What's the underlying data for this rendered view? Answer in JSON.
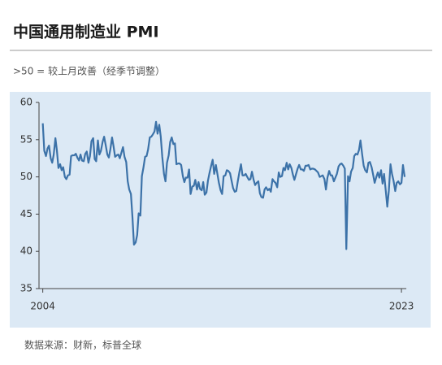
{
  "chart_data": {
    "type": "line",
    "title": "中国通用制造业 PMI",
    "subtitle": ">50 = 较上月改善（经季节调整）",
    "source": "数据来源：财新，标普全球",
    "color": "#3c72a8",
    "xlim": [
      2003.8,
      2023.9
    ],
    "xticks": [
      2004,
      2023
    ],
    "ylim": [
      35,
      60
    ],
    "yticks": [
      35,
      40,
      45,
      50,
      55,
      60
    ],
    "x": [
      2004.0,
      2004.08,
      2004.17,
      2004.25,
      2004.33,
      2004.42,
      2004.5,
      2004.58,
      2004.67,
      2004.75,
      2004.83,
      2004.92,
      2005.0,
      2005.08,
      2005.17,
      2005.25,
      2005.33,
      2005.42,
      2005.5,
      2005.58,
      2005.67,
      2005.75,
      2005.83,
      2005.92,
      2006.0,
      2006.08,
      2006.17,
      2006.25,
      2006.33,
      2006.42,
      2006.5,
      2006.58,
      2006.67,
      2006.75,
      2006.83,
      2006.92,
      2007.0,
      2007.08,
      2007.17,
      2007.25,
      2007.33,
      2007.42,
      2007.5,
      2007.58,
      2007.67,
      2007.75,
      2007.83,
      2007.92,
      2008.0,
      2008.08,
      2008.17,
      2008.25,
      2008.33,
      2008.42,
      2008.5,
      2008.58,
      2008.67,
      2008.75,
      2008.83,
      2008.92,
      2009.0,
      2009.08,
      2009.17,
      2009.25,
      2009.33,
      2009.42,
      2009.5,
      2009.58,
      2009.67,
      2009.75,
      2009.83,
      2009.92,
      2010.0,
      2010.08,
      2010.17,
      2010.25,
      2010.33,
      2010.42,
      2010.5,
      2010.58,
      2010.67,
      2010.75,
      2010.83,
      2010.92,
      2011.0,
      2011.08,
      2011.17,
      2011.25,
      2011.33,
      2011.42,
      2011.5,
      2011.58,
      2011.67,
      2011.75,
      2011.83,
      2011.92,
      2012.0,
      2012.08,
      2012.17,
      2012.25,
      2012.33,
      2012.42,
      2012.5,
      2012.58,
      2012.67,
      2012.75,
      2012.83,
      2012.92,
      2013.0,
      2013.08,
      2013.17,
      2013.25,
      2013.33,
      2013.42,
      2013.5,
      2013.58,
      2013.67,
      2013.75,
      2013.83,
      2013.92,
      2014.0,
      2014.08,
      2014.17,
      2014.25,
      2014.33,
      2014.42,
      2014.5,
      2014.58,
      2014.67,
      2014.75,
      2014.83,
      2014.92,
      2015.0,
      2015.08,
      2015.17,
      2015.25,
      2015.33,
      2015.42,
      2015.5,
      2015.58,
      2015.67,
      2015.75,
      2015.83,
      2015.92,
      2016.0,
      2016.08,
      2016.17,
      2016.25,
      2016.33,
      2016.42,
      2016.5,
      2016.58,
      2016.67,
      2016.75,
      2016.83,
      2016.92,
      2017.0,
      2017.08,
      2017.17,
      2017.25,
      2017.33,
      2017.42,
      2017.5,
      2017.58,
      2017.67,
      2017.75,
      2017.83,
      2017.92,
      2018.0,
      2018.08,
      2018.17,
      2018.25,
      2018.33,
      2018.42,
      2018.5,
      2018.58,
      2018.67,
      2018.75,
      2018.83,
      2018.92,
      2019.0,
      2019.08,
      2019.17,
      2019.25,
      2019.33,
      2019.42,
      2019.5,
      2019.58,
      2019.67,
      2019.75,
      2019.83,
      2019.92,
      2020.0,
      2020.08,
      2020.17,
      2020.25,
      2020.33,
      2020.42,
      2020.5,
      2020.58,
      2020.67,
      2020.75,
      2020.83,
      2020.92,
      2021.0,
      2021.08,
      2021.17,
      2021.25,
      2021.33,
      2021.42,
      2021.5,
      2021.58,
      2021.67,
      2021.75,
      2021.83,
      2021.92,
      2022.0,
      2022.08,
      2022.17,
      2022.25,
      2022.33,
      2022.42,
      2022.5,
      2022.58,
      2022.67,
      2022.75,
      2022.83,
      2022.92,
      2023.0,
      2023.08,
      2023.17
    ],
    "values": [
      57.2,
      53.5,
      52.8,
      53.8,
      54.2,
      52.5,
      51.9,
      53.0,
      55.2,
      53.5,
      51.2,
      51.7,
      50.9,
      51.3,
      50.0,
      49.7,
      50.2,
      50.3,
      52.8,
      52.9,
      52.9,
      53.1,
      52.6,
      52.2,
      53.0,
      52.2,
      52.1,
      53.1,
      53.4,
      51.9,
      52.8,
      54.8,
      55.2,
      52.4,
      52.1,
      54.9,
      53.0,
      53.5,
      54.7,
      55.4,
      54.3,
      53.0,
      52.6,
      53.7,
      55.3,
      54.1,
      52.7,
      52.9,
      53.0,
      52.5,
      53.3,
      54.0,
      52.7,
      52.0,
      49.4,
      48.3,
      47.7,
      44.6,
      40.9,
      41.2,
      42.2,
      45.1,
      44.8,
      50.1,
      51.2,
      52.7,
      52.8,
      53.7,
      55.3,
      55.4,
      55.7,
      56.1,
      57.4,
      55.8,
      57.0,
      55.4,
      52.7,
      50.4,
      49.4,
      51.9,
      52.9,
      54.7,
      55.3,
      54.4,
      54.5,
      51.7,
      51.8,
      51.8,
      51.6,
      50.1,
      49.3,
      49.9,
      49.9,
      51.0,
      47.7,
      48.7,
      48.8,
      49.6,
      48.3,
      49.3,
      48.4,
      48.2,
      49.3,
      47.6,
      47.9,
      49.5,
      50.5,
      51.5,
      52.3,
      50.4,
      51.6,
      50.4,
      49.2,
      48.2,
      47.7,
      50.1,
      50.2,
      50.9,
      50.8,
      50.5,
      49.5,
      48.5,
      48.0,
      48.1,
      49.4,
      50.7,
      51.7,
      50.2,
      50.2,
      50.4,
      50.0,
      49.6,
      49.7,
      50.7,
      49.6,
      48.9,
      49.2,
      49.4,
      47.8,
      47.3,
      47.2,
      48.3,
      48.6,
      48.2,
      48.4,
      48.0,
      49.7,
      49.4,
      49.2,
      48.6,
      50.6,
      50.0,
      50.1,
      51.2,
      50.9,
      51.9,
      51.0,
      51.7,
      51.2,
      50.3,
      49.6,
      50.4,
      51.1,
      51.6,
      51.0,
      51.0,
      50.8,
      51.5,
      51.5,
      51.6,
      51.0,
      51.1,
      51.1,
      51.0,
      50.8,
      50.6,
      50.0,
      50.1,
      50.2,
      49.7,
      48.3,
      49.9,
      50.8,
      50.2,
      50.2,
      49.4,
      49.9,
      50.4,
      51.4,
      51.7,
      51.8,
      51.5,
      51.1,
      40.3,
      50.1,
      49.4,
      50.7,
      51.2,
      52.8,
      53.1,
      53.0,
      53.6,
      54.9,
      53.0,
      51.5,
      50.9,
      50.6,
      51.9,
      52.0,
      51.3,
      50.3,
      49.2,
      50.0,
      50.6,
      49.9,
      50.9,
      49.1,
      50.4,
      48.1,
      46.0,
      48.1,
      51.7,
      50.4,
      49.5,
      48.1,
      49.2,
      49.4,
      49.0,
      49.2,
      51.6,
      50.0
    ]
  }
}
